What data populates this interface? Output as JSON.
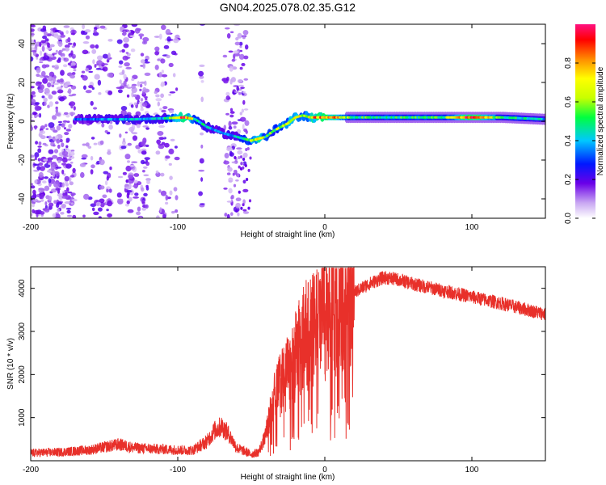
{
  "title": "GN04.2025.078.02.35.G12",
  "colors": {
    "signal": "#e8302a",
    "track": "#1e2ad8",
    "frame": "#000000"
  },
  "chart_data": [
    {
      "type": "heatmap",
      "xlabel": "Height of straight line (km)",
      "ylabel": "Frequency (Hz)",
      "xlim": [
        -200,
        150
      ],
      "ylim": [
        -50,
        50
      ],
      "xticks": [
        -200,
        -100,
        0,
        100
      ],
      "xtick_labels": [
        "-200",
        "-100",
        "0",
        "100"
      ],
      "yticks": [
        -40,
        -20,
        0,
        20,
        40
      ],
      "ytick_labels": [
        "-40",
        "-20",
        "0",
        "20",
        "40"
      ],
      "colorbar": {
        "label": "Normalized spectral amplitude",
        "range": [
          0,
          1
        ],
        "ticks": [
          0.0,
          0.2,
          0.4,
          0.6,
          0.8
        ],
        "tick_labels": [
          "0.0",
          "0.2",
          "0.4",
          "0.6",
          "0.8"
        ]
      },
      "track": {
        "x": [
          -170,
          -150,
          -130,
          -110,
          -95,
          -88,
          -80,
          -70,
          -60,
          -50,
          -45,
          -40,
          -35,
          -30,
          -25,
          -20,
          -15,
          -10,
          -5,
          0,
          20,
          40,
          60,
          80,
          100,
          120,
          150
        ],
        "y": [
          1,
          1,
          1,
          1.5,
          2,
          1,
          -3,
          -6,
          -8,
          -10,
          -9,
          -8,
          -5,
          -3,
          -1,
          2,
          3,
          2,
          2,
          2,
          2,
          2,
          2,
          2,
          2,
          2,
          1
        ],
        "amplitude": [
          0.3,
          0.35,
          0.4,
          0.4,
          0.9,
          0.5,
          0.4,
          0.35,
          0.4,
          0.6,
          0.8,
          0.5,
          0.55,
          0.6,
          0.65,
          0.7,
          0.6,
          0.7,
          0.85,
          0.9,
          0.5,
          0.5,
          0.5,
          0.5,
          0.95,
          0.5,
          0.4
        ]
      }
    },
    {
      "type": "line",
      "xlabel": "Height of straight line (km)",
      "ylabel": "SNR (10 * v/v)",
      "xlim": [
        -200,
        150
      ],
      "ylim": [
        0,
        4500
      ],
      "xticks": [
        -200,
        -100,
        0,
        100
      ],
      "xtick_labels": [
        "-200",
        "-100",
        "0",
        "100"
      ],
      "yticks": [
        1000,
        2000,
        3000,
        4000
      ],
      "ytick_labels": [
        "1000",
        "2000",
        "3000",
        "4000"
      ],
      "series": [
        {
          "name": "SNR",
          "x": [
            -200,
            -180,
            -160,
            -140,
            -130,
            -120,
            -100,
            -90,
            -80,
            -75,
            -70,
            -65,
            -60,
            -50,
            -45,
            -40,
            -35,
            -30,
            -25,
            -20,
            -15,
            -10,
            -5,
            0,
            5,
            10,
            20,
            30,
            40,
            50,
            60,
            80,
            100,
            120,
            150
          ],
          "y": [
            180,
            200,
            250,
            380,
            300,
            280,
            250,
            240,
            450,
            700,
            800,
            600,
            300,
            150,
            200,
            600,
            1400,
            1800,
            2000,
            2400,
            2800,
            3000,
            3100,
            3300,
            3400,
            3600,
            3900,
            4100,
            4250,
            4200,
            4100,
            3950,
            3800,
            3650,
            3400
          ]
        }
      ]
    }
  ]
}
